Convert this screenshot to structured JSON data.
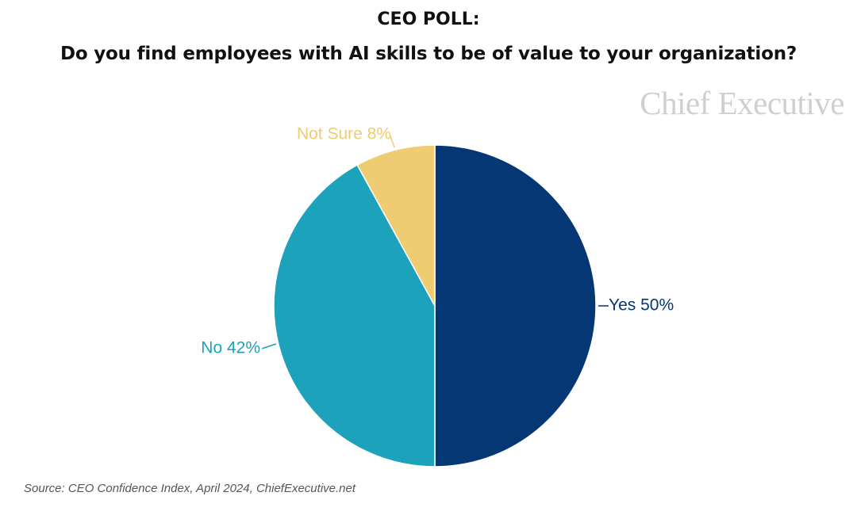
{
  "header": {
    "title": "CEO POLL:",
    "subtitle": "Do you find employees with AI skills to be of value to your organization?"
  },
  "brand": "Chief Executive",
  "source": "Source: CEO Confidence Index, April 2024, ChiefExecutive.net",
  "chart_data": {
    "type": "pie",
    "title": "CEO POLL:",
    "subtitle": "Do you find employees with AI skills to be of value to your organization?",
    "slices": [
      {
        "label": "Yes",
        "value": 50,
        "display": "Yes 50%",
        "color": "#063775"
      },
      {
        "label": "No",
        "value": 42,
        "display": "No 42%",
        "color": "#1da2bb"
      },
      {
        "label": "Not Sure",
        "value": 8,
        "display": "Not Sure 8%",
        "color": "#efcb72"
      }
    ],
    "start_angle": "12 o'clock",
    "direction": "clockwise",
    "legend": "none (labels on slices)"
  }
}
